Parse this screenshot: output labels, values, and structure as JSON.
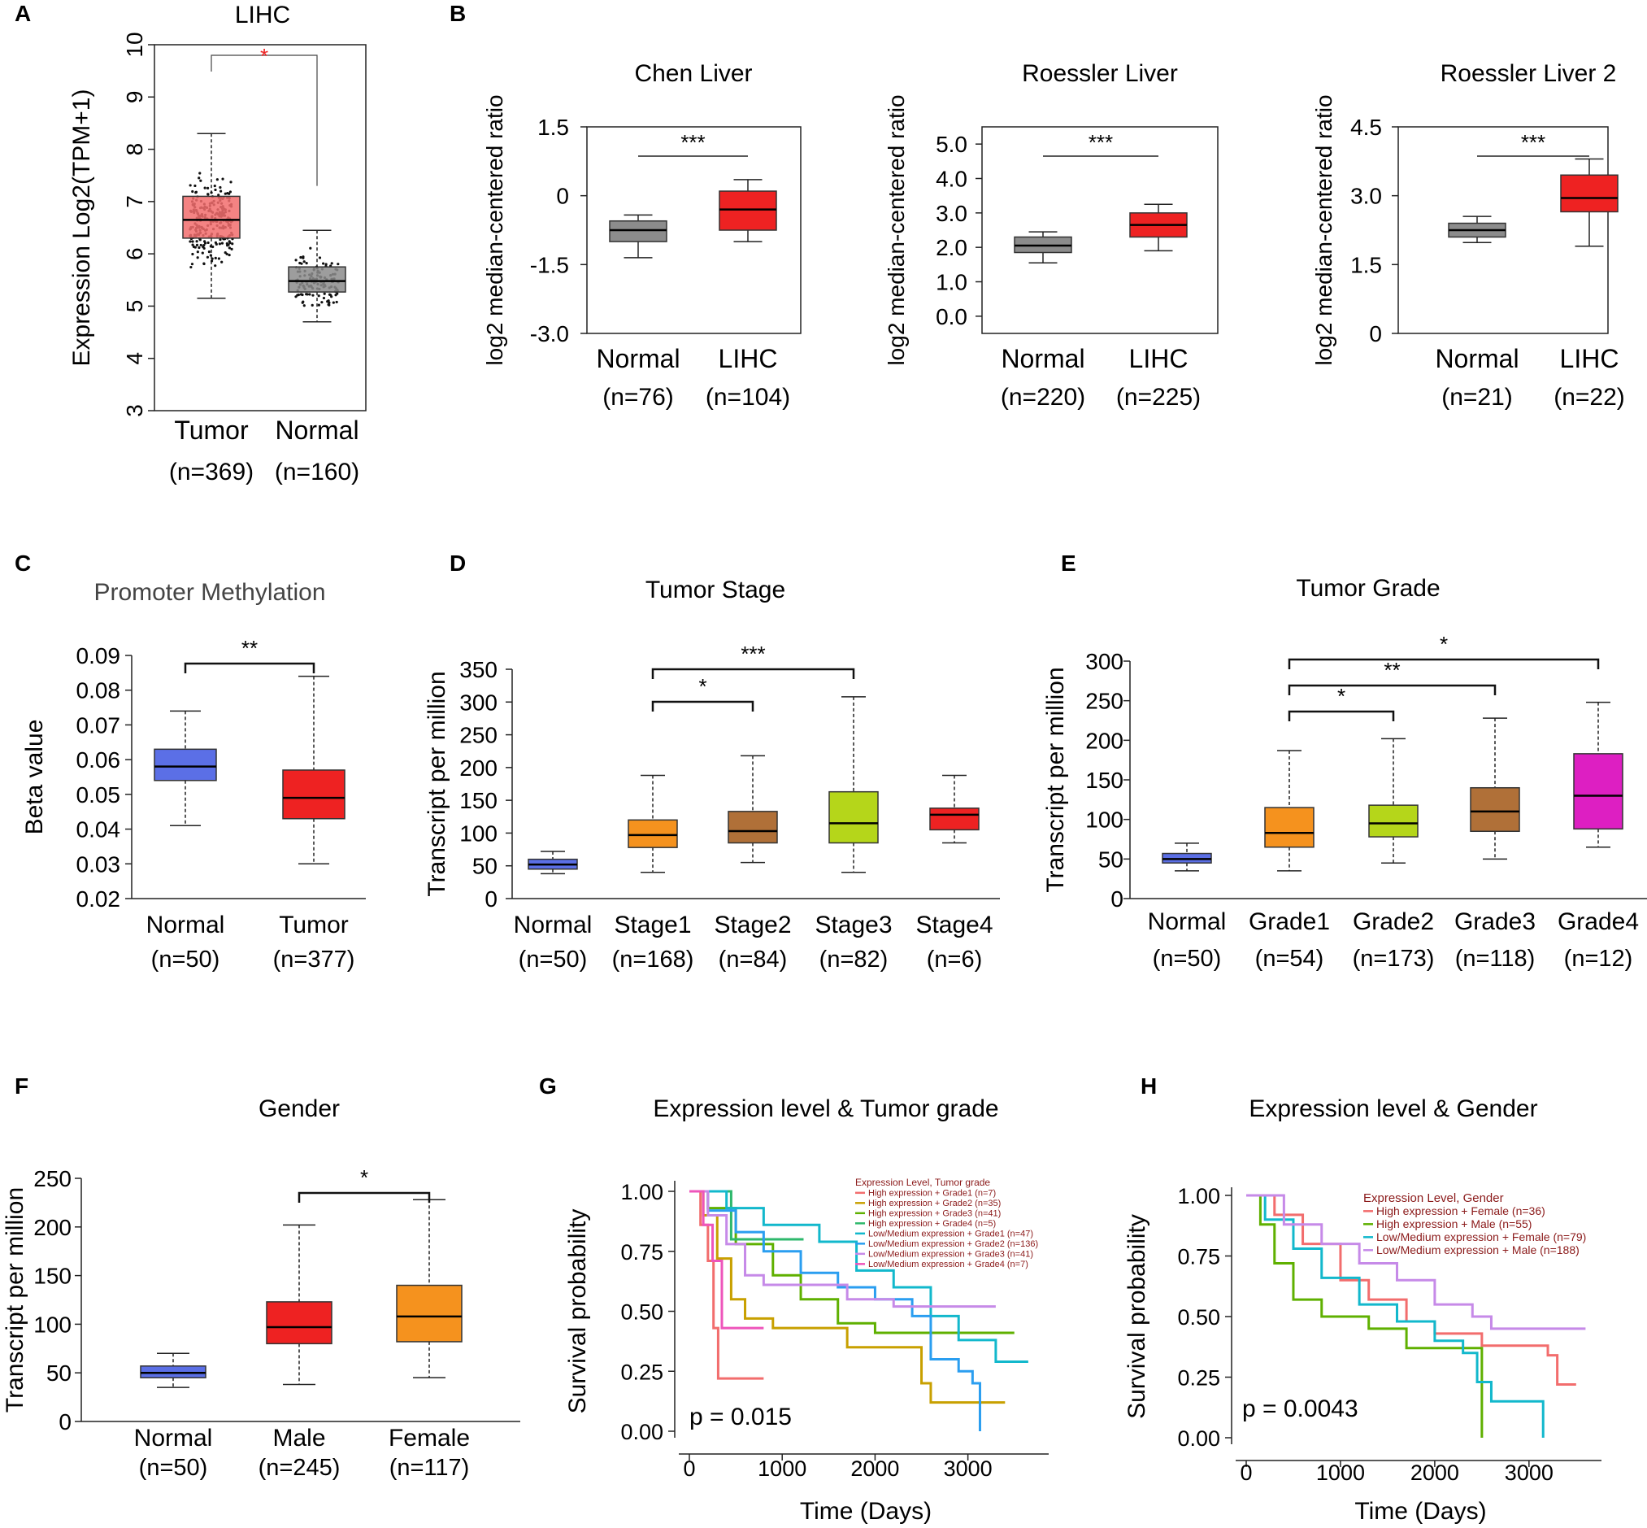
{
  "figure": {
    "description": "Multi-panel expression analysis figure (LIHC)"
  },
  "colors": {
    "tumor_red_light": "#f26d6d",
    "gray": "#8c8c8c",
    "red": "#ee2222",
    "blue": "#5b6fe6",
    "orange": "#f5921e",
    "brown": "#b07038",
    "lime": "#b5d61a",
    "magenta": "#dd1fc2",
    "sig_red": "#ee2222"
  },
  "chart_data": [
    {
      "panel": "A",
      "type": "box",
      "title": "LIHC",
      "ylabel": "Expression Log2(TPM+1)",
      "ylim": [
        3,
        10
      ],
      "yticks": [
        "3",
        "4",
        "5",
        "6",
        "7",
        "8",
        "9",
        "10"
      ],
      "categories": [
        "Tumor",
        "Normal"
      ],
      "counts": [
        "(n=369)",
        "(n=160)"
      ],
      "boxes": [
        {
          "q1": 6.3,
          "median": 6.65,
          "q3": 7.1,
          "min": 5.15,
          "max": 8.3,
          "color": "#f26d6d"
        },
        {
          "q1": 5.27,
          "median": 5.48,
          "q3": 5.75,
          "min": 4.7,
          "max": 6.45,
          "color": "#8c8c8c"
        }
      ],
      "significance": [
        {
          "from": 0,
          "to": 1,
          "label": "*"
        }
      ]
    },
    {
      "panel": "B",
      "type": "box",
      "title": "Chen Liver",
      "ylabel": "log2 median-centered ratio",
      "ylim": [
        -3.0,
        1.5
      ],
      "yticks": [
        "-3.0",
        "-1.5",
        "0",
        "1.5"
      ],
      "yvals": [
        -3.0,
        -1.5,
        0,
        1.5
      ],
      "categories": [
        "Normal",
        "LIHC"
      ],
      "counts": [
        "(n=76)",
        "(n=104)"
      ],
      "boxes": [
        {
          "q1": -1.0,
          "median": -0.75,
          "q3": -0.55,
          "min": -1.35,
          "max": -0.42,
          "color": "#8c8c8c"
        },
        {
          "q1": -0.75,
          "median": -0.3,
          "q3": 0.1,
          "min": -1.0,
          "max": 0.35,
          "color": "#ee2222"
        }
      ],
      "significance": [
        {
          "from": 0,
          "to": 1,
          "label": "***"
        }
      ]
    },
    {
      "panel": "",
      "type": "box",
      "title": "Roessler Liver",
      "ylabel": "log2 median-centered ratio",
      "ylim": [
        -0.5,
        5.5
      ],
      "yticks": [
        "0.0",
        "1.0",
        "2.0",
        "3.0",
        "4.0",
        "5.0"
      ],
      "yvals": [
        0,
        1,
        2,
        3,
        4,
        5
      ],
      "categories": [
        "Normal",
        "LIHC"
      ],
      "counts": [
        "(n=220)",
        "(n=225)"
      ],
      "boxes": [
        {
          "q1": 1.85,
          "median": 2.05,
          "q3": 2.3,
          "min": 1.55,
          "max": 2.45,
          "color": "#8c8c8c"
        },
        {
          "q1": 2.3,
          "median": 2.65,
          "q3": 3.0,
          "min": 1.9,
          "max": 3.25,
          "color": "#ee2222"
        }
      ],
      "significance": [
        {
          "from": 0,
          "to": 1,
          "label": "***"
        }
      ]
    },
    {
      "panel": "",
      "type": "box",
      "title": "Roessler Liver 2",
      "ylabel": "log2 median-centered ratio",
      "ylim": [
        0,
        4.5
      ],
      "yticks": [
        "0",
        "1.5",
        "3.0",
        "4.5"
      ],
      "yvals": [
        0,
        1.5,
        3.0,
        4.5
      ],
      "categories": [
        "Normal",
        "LIHC"
      ],
      "counts": [
        "(n=21)",
        "(n=22)"
      ],
      "boxes": [
        {
          "q1": 2.1,
          "median": 2.25,
          "q3": 2.4,
          "min": 1.98,
          "max": 2.55,
          "color": "#8c8c8c"
        },
        {
          "q1": 2.65,
          "median": 2.95,
          "q3": 3.45,
          "min": 1.9,
          "max": 3.8,
          "color": "#ee2222"
        }
      ],
      "significance": [
        {
          "from": 0,
          "to": 1,
          "label": "***"
        }
      ]
    },
    {
      "panel": "C",
      "type": "box",
      "title": "Promoter Methylation",
      "ylabel": "Beta value",
      "ylim": [
        0.02,
        0.09
      ],
      "yticks": [
        "0.02",
        "0.03",
        "0.04",
        "0.05",
        "0.06",
        "0.07",
        "0.08",
        "0.09"
      ],
      "categories": [
        "Normal",
        "Tumor"
      ],
      "counts": [
        "(n=50)",
        "(n=377)"
      ],
      "boxes": [
        {
          "q1": 0.054,
          "median": 0.058,
          "q3": 0.063,
          "min": 0.041,
          "max": 0.074,
          "color": "#5b6fe6"
        },
        {
          "q1": 0.043,
          "median": 0.049,
          "q3": 0.057,
          "min": 0.03,
          "max": 0.084,
          "color": "#ee2222"
        }
      ],
      "significance": [
        {
          "from": 0,
          "to": 1,
          "label": "**"
        }
      ]
    },
    {
      "panel": "D",
      "type": "box",
      "title": "Tumor Stage",
      "ylabel": "Transcript per million",
      "ylim": [
        0,
        350
      ],
      "yticks": [
        "0",
        "50",
        "100",
        "150",
        "200",
        "250",
        "300",
        "350"
      ],
      "categories": [
        "Normal",
        "Stage1",
        "Stage2",
        "Stage3",
        "Stage4"
      ],
      "counts": [
        "(n=50)",
        "(n=168)",
        "(n=84)",
        "(n=82)",
        "(n=6)"
      ],
      "boxes": [
        {
          "q1": 45,
          "median": 52,
          "q3": 60,
          "min": 38,
          "max": 72,
          "color": "#5b6fe6"
        },
        {
          "q1": 78,
          "median": 97,
          "q3": 120,
          "min": 40,
          "max": 188,
          "color": "#f5921e"
        },
        {
          "q1": 85,
          "median": 103,
          "q3": 133,
          "min": 55,
          "max": 218,
          "color": "#b07038"
        },
        {
          "q1": 85,
          "median": 115,
          "q3": 163,
          "min": 40,
          "max": 308,
          "color": "#b5d61a"
        },
        {
          "q1": 105,
          "median": 128,
          "q3": 138,
          "min": 85,
          "max": 188,
          "color": "#ee2222"
        }
      ],
      "significance": [
        {
          "from": 1,
          "to": 2,
          "label": "*"
        },
        {
          "from": 1,
          "to": 3,
          "label": "***"
        }
      ]
    },
    {
      "panel": "E",
      "type": "box",
      "title": "Tumor Grade",
      "ylabel": "Transcript per million",
      "ylim": [
        0,
        300
      ],
      "yticks": [
        "0",
        "50",
        "100",
        "150",
        "200",
        "250",
        "300"
      ],
      "categories": [
        "Normal",
        "Grade1",
        "Grade2",
        "Grade3",
        "Grade4"
      ],
      "counts": [
        "(n=50)",
        "(n=54)",
        "(n=173)",
        "(n=118)",
        "(n=12)"
      ],
      "boxes": [
        {
          "q1": 45,
          "median": 50,
          "q3": 57,
          "min": 35,
          "max": 70,
          "color": "#5b6fe6"
        },
        {
          "q1": 65,
          "median": 83,
          "q3": 115,
          "min": 35,
          "max": 187,
          "color": "#f5921e"
        },
        {
          "q1": 78,
          "median": 95,
          "q3": 118,
          "min": 45,
          "max": 202,
          "color": "#b5d61a"
        },
        {
          "q1": 85,
          "median": 110,
          "q3": 140,
          "min": 50,
          "max": 228,
          "color": "#b07038"
        },
        {
          "q1": 88,
          "median": 130,
          "q3": 183,
          "min": 65,
          "max": 248,
          "color": "#dd1fc2"
        }
      ],
      "significance": [
        {
          "from": 1,
          "to": 2,
          "label": "*"
        },
        {
          "from": 1,
          "to": 3,
          "label": "**"
        },
        {
          "from": 1,
          "to": 4,
          "label": "*"
        }
      ]
    },
    {
      "panel": "F",
      "type": "box",
      "title": "Gender",
      "ylabel": "Transcript per million",
      "ylim": [
        0,
        250
      ],
      "yticks": [
        "0",
        "50",
        "100",
        "150",
        "200",
        "250"
      ],
      "categories": [
        "Normal",
        "Male",
        "Female"
      ],
      "counts": [
        "(n=50)",
        "(n=245)",
        "(n=117)"
      ],
      "boxes": [
        {
          "q1": 45,
          "median": 50,
          "q3": 57,
          "min": 35,
          "max": 70,
          "color": "#5b6fe6"
        },
        {
          "q1": 80,
          "median": 97,
          "q3": 123,
          "min": 38,
          "max": 202,
          "color": "#ee2222"
        },
        {
          "q1": 82,
          "median": 108,
          "q3": 140,
          "min": 45,
          "max": 228,
          "color": "#f5921e"
        }
      ],
      "significance": [
        {
          "from": 1,
          "to": 2,
          "label": "*"
        }
      ]
    },
    {
      "panel": "G",
      "type": "line",
      "title": "Expression level & Tumor grade",
      "xlabel": "Time (Days)",
      "ylabel": "Survival probability",
      "xlim": [
        0,
        3800
      ],
      "ylim": [
        0,
        1
      ],
      "xticks": [
        "0",
        "1000",
        "2000",
        "3000"
      ],
      "yticks": [
        "0.00",
        "0.25",
        "0.50",
        "0.75",
        "1.00"
      ],
      "pvalue": "p = 0.015",
      "legend_title": "Expression Level, Tumor grade",
      "series": [
        {
          "name": "High expression + Grade1 (n=7)",
          "color": "#f26d6d",
          "points": [
            [
              0,
              1
            ],
            [
              120,
              0.86
            ],
            [
              200,
              0.71
            ],
            [
              260,
              0.43
            ],
            [
              310,
              0.22
            ],
            [
              800,
              0.22
            ]
          ]
        },
        {
          "name": "High expression + Grade2 (n=35)",
          "color": "#c8a000",
          "points": [
            [
              0,
              1
            ],
            [
              150,
              0.9
            ],
            [
              300,
              0.72
            ],
            [
              450,
              0.55
            ],
            [
              600,
              0.47
            ],
            [
              900,
              0.43
            ],
            [
              1600,
              0.43
            ],
            [
              1700,
              0.35
            ],
            [
              2400,
              0.35
            ],
            [
              2500,
              0.2
            ],
            [
              2600,
              0.12
            ],
            [
              3000,
              0.12
            ],
            [
              3100,
              0.12
            ],
            [
              3400,
              0.12
            ]
          ]
        },
        {
          "name": "High expression + Grade3 (n=41)",
          "color": "#5fb000",
          "points": [
            [
              0,
              1
            ],
            [
              200,
              0.93
            ],
            [
              500,
              0.78
            ],
            [
              900,
              0.65
            ],
            [
              1200,
              0.55
            ],
            [
              1600,
              0.45
            ],
            [
              2000,
              0.41
            ],
            [
              3500,
              0.41
            ]
          ]
        },
        {
          "name": "High expression + Grade4 (n=5)",
          "color": "#2eb86c",
          "points": [
            [
              0,
              1
            ],
            [
              400,
              1
            ],
            [
              450,
              0.8
            ],
            [
              1230,
              0.8
            ]
          ]
        },
        {
          "name": "Low/Medium expression + Grade1 (n=47)",
          "color": "#12b8cc",
          "points": [
            [
              0,
              1
            ],
            [
              400,
              0.93
            ],
            [
              800,
              0.86
            ],
            [
              1400,
              0.79
            ],
            [
              1800,
              0.67
            ],
            [
              2200,
              0.6
            ],
            [
              2600,
              0.48
            ],
            [
              2900,
              0.38
            ],
            [
              3300,
              0.29
            ],
            [
              3650,
              0.29
            ]
          ]
        },
        {
          "name": "Low/Medium expression + Grade2 (n=136)",
          "color": "#2a9ef0",
          "points": [
            [
              0,
              1
            ],
            [
              200,
              0.92
            ],
            [
              500,
              0.83
            ],
            [
              800,
              0.75
            ],
            [
              1200,
              0.66
            ],
            [
              1600,
              0.6
            ],
            [
              2000,
              0.55
            ],
            [
              2400,
              0.48
            ],
            [
              2600,
              0.3
            ],
            [
              2900,
              0.25
            ],
            [
              3050,
              0.2
            ],
            [
              3130,
              0.0
            ]
          ]
        },
        {
          "name": "Low/Medium expression + Grade3 (n=41)",
          "color": "#c68ae8",
          "points": [
            [
              0,
              1
            ],
            [
              200,
              0.9
            ],
            [
              400,
              0.78
            ],
            [
              600,
              0.65
            ],
            [
              800,
              0.61
            ],
            [
              1300,
              0.61
            ],
            [
              1700,
              0.55
            ],
            [
              2200,
              0.52
            ],
            [
              3300,
              0.52
            ]
          ]
        },
        {
          "name": "Low/Medium expression + Grade4 (n=7)",
          "color": "#ee55bb",
          "points": [
            [
              0,
              1
            ],
            [
              150,
              0.86
            ],
            [
              250,
              0.71
            ],
            [
              350,
              0.43
            ],
            [
              800,
              0.43
            ]
          ]
        }
      ]
    },
    {
      "panel": "H",
      "type": "line",
      "title": "Expression level & Gender",
      "xlabel": "Time (Days)",
      "ylabel": "Survival probability",
      "xlim": [
        0,
        3700
      ],
      "ylim": [
        0,
        1
      ],
      "xticks": [
        "0",
        "1000",
        "2000",
        "3000"
      ],
      "yticks": [
        "0.00",
        "0.25",
        "0.50",
        "0.75",
        "1.00"
      ],
      "pvalue": "p = 0.0043",
      "legend_title": "Expression Level, Gender",
      "series": [
        {
          "name": "High expression + Female (n=36)",
          "color": "#f26d6d",
          "points": [
            [
              0,
              1
            ],
            [
              300,
              0.92
            ],
            [
              600,
              0.8
            ],
            [
              1000,
              0.65
            ],
            [
              1300,
              0.57
            ],
            [
              1700,
              0.48
            ],
            [
              2000,
              0.43
            ],
            [
              2500,
              0.38
            ],
            [
              3200,
              0.34
            ],
            [
              3300,
              0.22
            ],
            [
              3500,
              0.22
            ]
          ]
        },
        {
          "name": "High expression + Male (n=55)",
          "color": "#5fb000",
          "points": [
            [
              0,
              1
            ],
            [
              150,
              0.88
            ],
            [
              300,
              0.72
            ],
            [
              500,
              0.57
            ],
            [
              800,
              0.5
            ],
            [
              1300,
              0.45
            ],
            [
              1700,
              0.37
            ],
            [
              2400,
              0.37
            ],
            [
              2500,
              0.0
            ]
          ]
        },
        {
          "name": "Low/Medium expression + Female (n=79)",
          "color": "#12b8cc",
          "points": [
            [
              0,
              1
            ],
            [
              200,
              0.9
            ],
            [
              500,
              0.78
            ],
            [
              800,
              0.66
            ],
            [
              1200,
              0.55
            ],
            [
              1600,
              0.48
            ],
            [
              2000,
              0.4
            ],
            [
              2300,
              0.35
            ],
            [
              2450,
              0.23
            ],
            [
              2600,
              0.15
            ],
            [
              3150,
              0.0
            ]
          ]
        },
        {
          "name": "Low/Medium expression + Male (n=188)",
          "color": "#c68ae8",
          "points": [
            [
              0,
              1
            ],
            [
              400,
              0.88
            ],
            [
              800,
              0.8
            ],
            [
              1200,
              0.72
            ],
            [
              1600,
              0.65
            ],
            [
              2000,
              0.55
            ],
            [
              2400,
              0.5
            ],
            [
              2600,
              0.45
            ],
            [
              3600,
              0.45
            ]
          ]
        }
      ]
    }
  ]
}
